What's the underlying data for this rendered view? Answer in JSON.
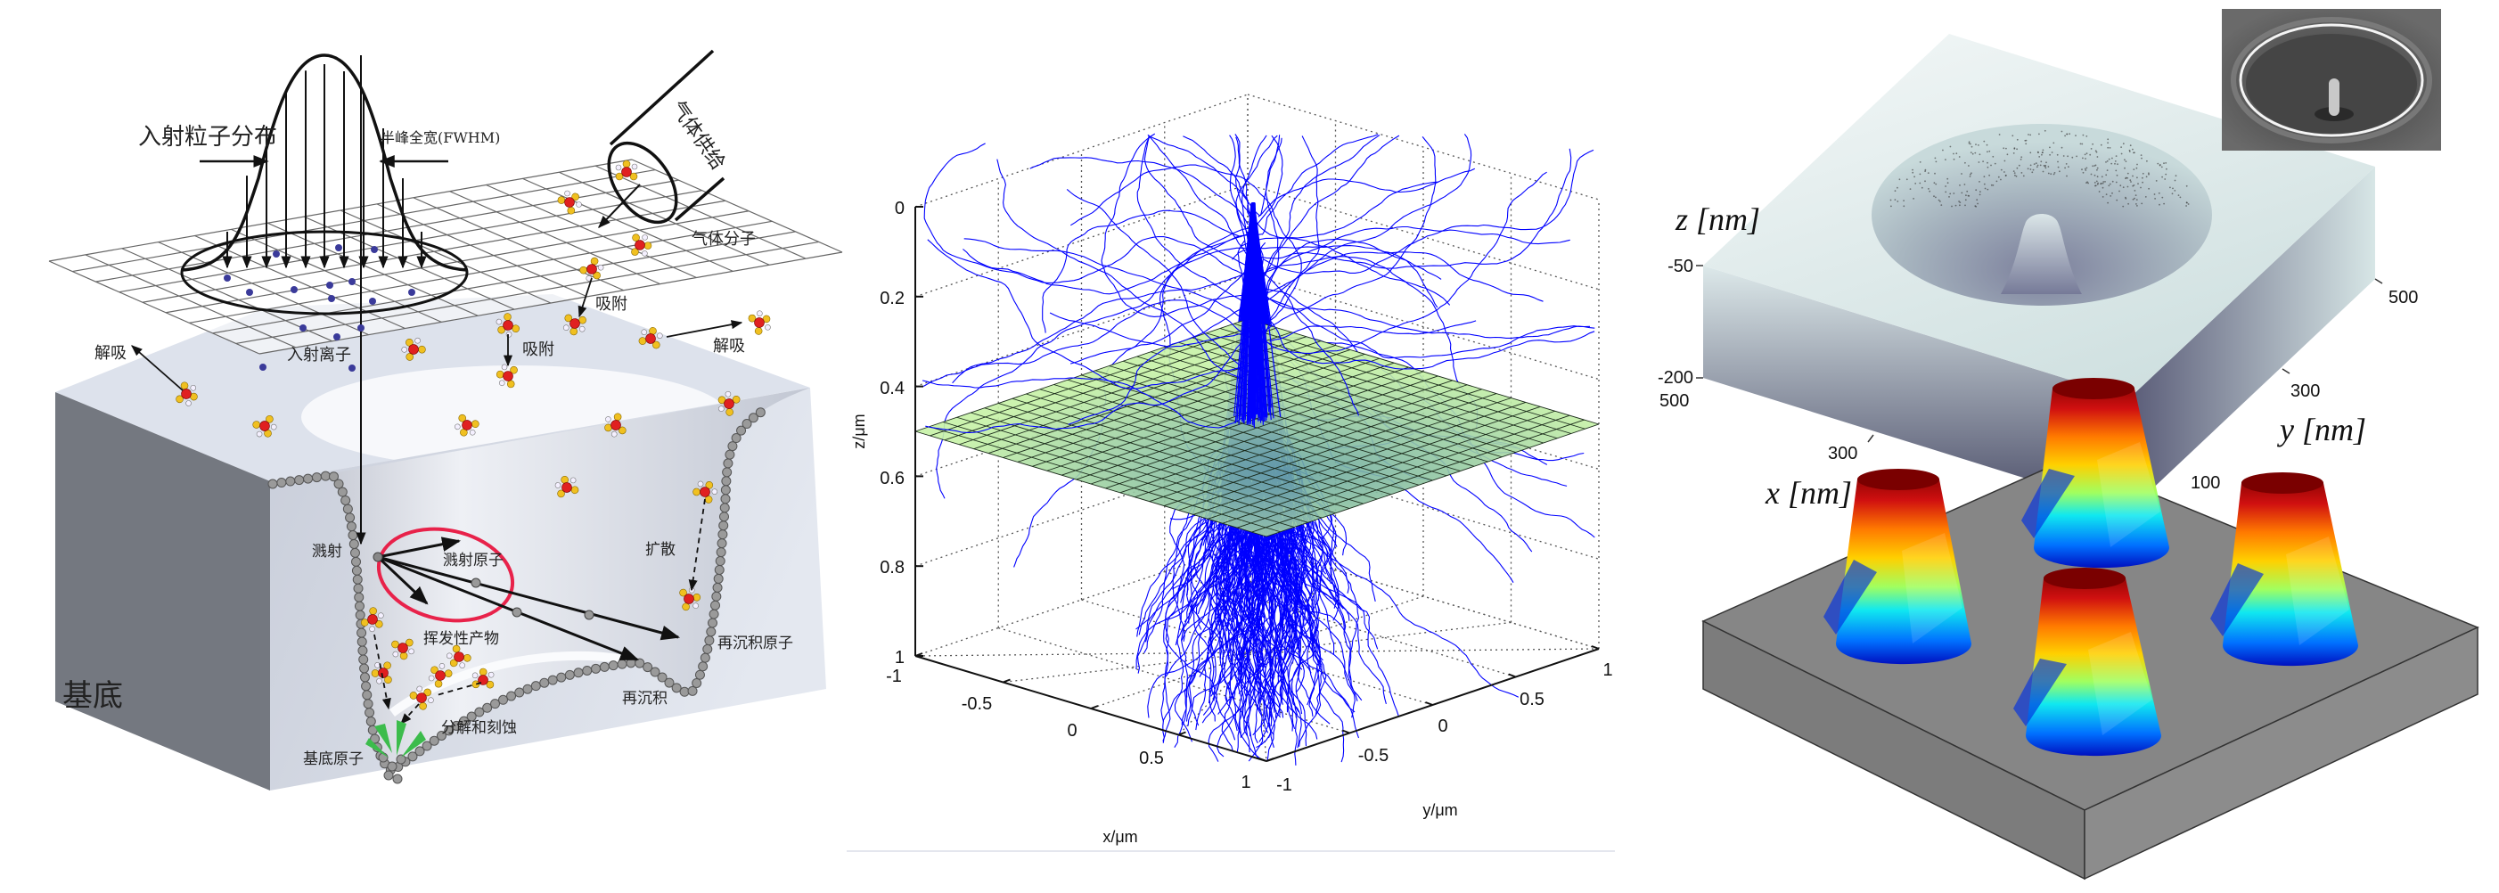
{
  "left_diagram": {
    "incident_distribution": "入射粒子分布",
    "fwhm": "半峰全宽(FWHM)",
    "gas_supply": "气体供给",
    "gas_molecule": "气体分子",
    "adsorption_1": "吸附",
    "adsorption_2": "吸附",
    "desorption_right": "解吸",
    "desorption_left": "解吸",
    "incident_ion": "入射离子",
    "sputtering": "溅射",
    "sputtered_atom": "溅射原子",
    "diffusion": "扩散",
    "volatile_product": "挥发性产物",
    "redeposited_atom": "再沉积原子",
    "redeposition": "再沉积",
    "decompose_etch": "分解和刻蚀",
    "substrate_atom": "基底原子",
    "substrate": "基底"
  },
  "trajectory_plot": {
    "z_label": "z/μm",
    "x_label": "x/μm",
    "y_label": "y/μm",
    "z_ticks": [
      "0",
      "0.2",
      "0.4",
      "0.6",
      "0.8",
      "1"
    ],
    "x_ticks": [
      "-1",
      "-0.5",
      "0",
      "0.5",
      "1"
    ],
    "y_ticks": [
      "-1",
      "-0.5",
      "0",
      "0.5",
      "1"
    ],
    "plane_depth": 0.5,
    "grid": true,
    "trajectory_color": "#0000ff",
    "plane_color": "#c6f2a6"
  },
  "etch_profile": {
    "z_label": "z [nm]",
    "z_ticks": [
      "-50",
      "-200"
    ],
    "x_label": "x [nm]",
    "x_ticks": [
      "500",
      "300"
    ],
    "y_label": "y [nm]",
    "y_ticks": [
      "500",
      "300",
      "100"
    ],
    "pillar_colormap": "jet",
    "substrate_color": "#858585"
  },
  "colors": {
    "sputter_circle": "#e8224a",
    "ion_dot": "#3a3a9a",
    "molecule_core": "#e02020",
    "molecule_ligand": "#f0c020"
  }
}
